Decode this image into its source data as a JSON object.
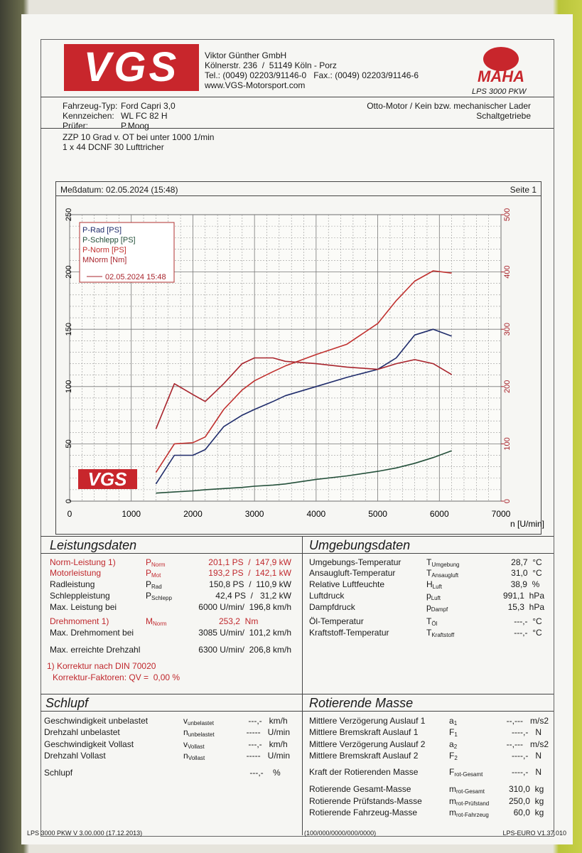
{
  "header": {
    "logo": "VGS",
    "company": "Viktor Günther GmbH",
    "address": "Kölnerstr. 236  /  51149 Köln - Porz",
    "phone": "Tel.: (0049) 02203/91146-0   Fax.: (0049) 02203/91146-6",
    "web": "www.VGS-Motorsport.com",
    "brand": "MAHA",
    "model": "LPS 3000 PKW"
  },
  "vehicle": {
    "rows": [
      [
        "Fahrzeug-Typ:",
        "Ford Capri 3,0"
      ],
      [
        "Kennzeichen:",
        "WL FC 82 H"
      ],
      [
        "Prüfer:",
        "P.Moog"
      ]
    ],
    "engine": "Otto-Motor / Kein bzw. mechanischer Lader",
    "gearbox": "Schaltgetriebe"
  },
  "notes": [
    "ZZP 10 Grad v. OT bei unter 1000 1/min",
    "1 x 44 DCNF 30 Lufttricher"
  ],
  "measurement": {
    "date": "Meßdatum: 02.05.2024 (15:48)",
    "page": "Seite 1"
  },
  "chart_data": {
    "type": "line",
    "x_label": "n [U/min]",
    "legend": "upper left",
    "legend_date": "02.05.2024 15:48",
    "watermark": "VGS",
    "grid": true,
    "xlim": [
      0,
      7000
    ],
    "xticks": [
      0,
      1000,
      2000,
      3000,
      4000,
      5000,
      6000,
      7000
    ],
    "ylim": [
      0,
      250
    ],
    "yticks": [
      0,
      50,
      100,
      150,
      200,
      250
    ],
    "y2lim": [
      0,
      500
    ],
    "y2ticks": [
      0,
      100,
      200,
      300,
      400,
      500
    ],
    "x": [
      1400,
      1700,
      2000,
      2200,
      2500,
      2800,
      3000,
      3300,
      3500,
      4000,
      4500,
      5000,
      5300,
      5600,
      5900,
      6200
    ],
    "series": [
      {
        "name": "P-Rad [PS]",
        "color": "#1f2c6b",
        "values": [
          15,
          40,
          40,
          45,
          65,
          75,
          80,
          87,
          92,
          100,
          108,
          115,
          125,
          145,
          150,
          144
        ]
      },
      {
        "name": "P-Schlepp [PS]",
        "color": "#24503a",
        "values": [
          7,
          8,
          9,
          10,
          11,
          12,
          13,
          14,
          15,
          19,
          22,
          26,
          29,
          33,
          38,
          44
        ]
      },
      {
        "name": "P-Norm [PS]",
        "color": "#c0302e",
        "values": [
          25,
          50,
          51,
          56,
          80,
          97,
          105,
          113,
          118,
          128,
          137,
          155,
          175,
          192,
          201,
          199
        ]
      },
      {
        "name": "MNorm [Nm]",
        "color": "#a8242c",
        "axis": "y2",
        "values": [
          126,
          205,
          186,
          174,
          205,
          240,
          250,
          250,
          244,
          240,
          234,
          230,
          240,
          247,
          240,
          221
        ]
      }
    ]
  },
  "sections": [
    {
      "title": "Leistungsdaten",
      "rows": [
        {
          "label": "Norm-Leistung 1)",
          "sym": "P",
          "sub": "Norm",
          "value": "201,1 PS  /  147,9 kW",
          "color": "#c0282d"
        },
        {
          "label": "Motorleistung",
          "sym": "P",
          "sub": "Mot",
          "value": "193,2 PS  /  142,1 kW",
          "color": "#c0282d"
        },
        {
          "label": "Radleistung",
          "sym": "P",
          "sub": "Rad",
          "value": "150,8 PS  /  110,9 kW"
        },
        {
          "label": "Schleppleistung",
          "sym": "P",
          "sub": "Schlepp",
          "value": "42,4 PS  /   31,2 kW"
        },
        {
          "label": "Max. Leistung bei",
          "value": "6000 U/min/  196,8 km/h"
        },
        {
          "label": "Drehmoment 1)",
          "sym": "M",
          "sub": "Norm",
          "value": "253,2  Nm              ",
          "color": "#c0282d"
        },
        {
          "label": "Max. Drehmoment bei",
          "value": "3085 U/min/  101,2 km/h"
        },
        {
          "label": "Max. erreichte Drehzahl",
          "value": "6300 U/min/  206,8 km/h"
        }
      ],
      "notes": [
        "1) Korrektur nach DIN 70020",
        "Korrektur-Faktoren: QV =  0,00 %"
      ],
      "note_color": "#c0282d"
    },
    {
      "title": "Umgebungsdaten",
      "rows": [
        {
          "label": "Umgebungs-Temperatur",
          "sym": "T",
          "sub": "Umgebung",
          "value": "28,7  °C "
        },
        {
          "label": "Ansaugluft-Temperatur",
          "sym": "T",
          "sub": "Ansaugluft",
          "value": "31,0  °C "
        },
        {
          "label": "Relative Luftfeuchte",
          "sym": "H",
          "sub": "Luft",
          "value": "38,9  %  "
        },
        {
          "label": "Luftdruck",
          "sym": "p",
          "sub": "Luft",
          "value": "991,1  hPa"
        },
        {
          "label": "Dampfdruck",
          "sym": "p",
          "sub": "Dampf",
          "value": "15,3  hPa"
        },
        {
          "label": "Öl-Temperatur",
          "sym": "T",
          "sub": "Öl",
          "value": "---,-  °C "
        },
        {
          "label": "Kraftstoff-Temperatur",
          "sym": "T",
          "sub": "Kraftstoff",
          "value": "---,-  °C "
        }
      ]
    },
    {
      "title": "Schlupf",
      "rows": [
        {
          "label": "Geschwindigkeit unbelastet",
          "sym": "v",
          "sub": "unbelastet",
          "value": "---,-   km/h "
        },
        {
          "label": "Drehzahl unbelastet",
          "sym": "n",
          "sub": "unbelastet",
          "value": "-----   U/min"
        },
        {
          "label": "Geschwindigkeit Vollast",
          "sym": "v",
          "sub": "Vollast",
          "value": "---,-   km/h "
        },
        {
          "label": "Drehzahl Vollast",
          "sym": "n",
          "sub": "Vollast",
          "value": "-----   U/min"
        },
        {
          "label": "Schlupf",
          "value": "---,-    %    "
        }
      ]
    },
    {
      "title": "Rotierende Masse",
      "rows": [
        {
          "label": "Mittlere Verzögerung Auslauf 1",
          "sym": "a",
          "sub": "1",
          "value": "--,---   m/s2"
        },
        {
          "label": "Mittlere Bremskraft Auslauf 1",
          "sym": "F",
          "sub": "1",
          "value": "----,-   N   "
        },
        {
          "label": "Mittlere Verzögerung Auslauf 2",
          "sym": "a",
          "sub": "2",
          "value": "--,---   m/s2"
        },
        {
          "label": "Mittlere Bremskraft Auslauf 2",
          "sym": "F",
          "sub": "2",
          "value": "----,-   N   "
        },
        {
          "label": "Kraft der Rotierenden Masse",
          "sym": "F",
          "sub": "rot-Gesamt",
          "value": "----,-   N   "
        },
        {
          "label": "Rotierende Gesamt-Masse",
          "sym": "m",
          "sub": "rot-Gesamt",
          "value": "310,0  kg  "
        },
        {
          "label": "Rotierende Prüfstands-Masse",
          "sym": "m",
          "sub": "rot-Prüfstand",
          "value": "250,0  kg  "
        },
        {
          "label": "Rotierende Fahrzeug-Masse",
          "sym": "m",
          "sub": "rot-Fahrzeug",
          "value": "60,0  kg  "
        }
      ]
    }
  ],
  "footer": {
    "left": "LPS 3000 PKW V 3.00.000 (17.12.2013)",
    "center": "(100/000/0000/000/0000)",
    "right": "LPS-EURO V1.37.010"
  }
}
